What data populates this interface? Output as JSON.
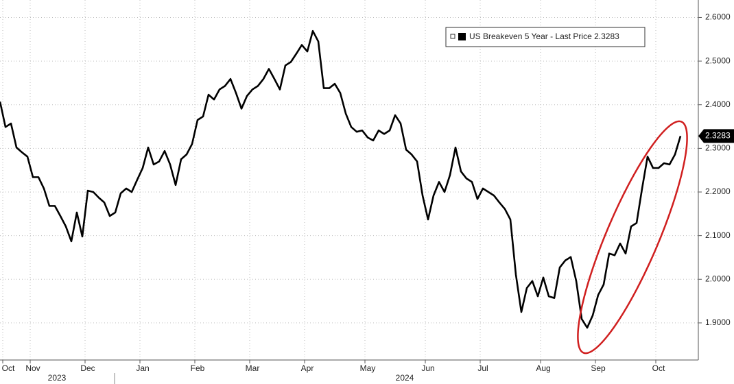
{
  "chart_data": {
    "type": "line",
    "categories": [
      null,
      "Oct",
      null,
      null,
      null,
      null,
      "Nov",
      null,
      null,
      null,
      null,
      null,
      null,
      null,
      null,
      null,
      "Dec",
      null,
      null,
      null,
      null,
      null,
      null,
      null,
      null,
      null,
      "Jan",
      null,
      null,
      null,
      null,
      null,
      null,
      null,
      null,
      null,
      "Feb",
      null,
      null,
      null,
      null,
      null,
      null,
      null,
      null,
      null,
      "Mar",
      null,
      null,
      null,
      null,
      null,
      null,
      null,
      null,
      null,
      "Apr",
      null,
      null,
      null,
      null,
      null,
      null,
      null,
      null,
      null,
      null,
      "May",
      null,
      null,
      null,
      null,
      null,
      null,
      null,
      null,
      null,
      null,
      "Jun",
      null,
      null,
      null,
      null,
      null,
      null,
      null,
      null,
      null,
      "Jul",
      null,
      null,
      null,
      null,
      null,
      null,
      null,
      null,
      null,
      null,
      "Aug",
      null,
      null,
      null,
      null,
      null,
      null,
      null,
      null,
      null,
      "Sep",
      null,
      null,
      null,
      null,
      null,
      null,
      null,
      null,
      null,
      null,
      "Oct",
      null,
      null,
      null,
      null
    ],
    "years": [
      "2023",
      "2024"
    ],
    "series": [
      {
        "name": "US Breakeven 5 Year - Last Price 2.3283",
        "color": "#000000",
        "values": [
          2.407,
          2.349,
          2.357,
          2.302,
          2.291,
          2.281,
          2.234,
          2.234,
          2.208,
          2.168,
          2.168,
          2.145,
          2.121,
          2.087,
          2.153,
          2.098,
          2.203,
          2.2,
          2.187,
          2.176,
          2.145,
          2.153,
          2.197,
          2.208,
          2.2,
          2.228,
          2.255,
          2.302,
          2.263,
          2.27,
          2.294,
          2.263,
          2.216,
          2.275,
          2.286,
          2.31,
          2.365,
          2.373,
          2.423,
          2.412,
          2.435,
          2.443,
          2.459,
          2.427,
          2.391,
          2.42,
          2.435,
          2.443,
          2.459,
          2.482,
          2.459,
          2.435,
          2.49,
          2.498,
          2.517,
          2.537,
          2.522,
          2.569,
          2.545,
          2.438,
          2.438,
          2.448,
          2.427,
          2.38,
          2.349,
          2.338,
          2.341,
          2.325,
          2.318,
          2.341,
          2.333,
          2.341,
          2.376,
          2.357,
          2.297,
          2.286,
          2.27,
          2.192,
          2.137,
          2.192,
          2.223,
          2.2,
          2.239,
          2.302,
          2.247,
          2.231,
          2.223,
          2.184,
          2.208,
          2.2,
          2.192,
          2.176,
          2.161,
          2.137,
          2.011,
          1.925,
          1.98,
          1.996,
          1.961,
          2.004,
          1.961,
          1.957,
          2.027,
          2.043,
          2.051,
          1.996,
          1.909,
          1.889,
          1.917,
          1.964,
          1.988,
          2.059,
          2.055,
          2.082,
          2.059,
          2.121,
          2.129,
          2.208,
          2.281,
          2.255,
          2.255,
          2.266,
          2.263,
          2.286,
          2.3283
        ]
      }
    ],
    "ylim": [
      1.815,
      2.64
    ],
    "yticks": [
      {
        "value": 1.9,
        "label": "1.9000"
      },
      {
        "value": 2.0,
        "label": "2.0000"
      },
      {
        "value": 2.1,
        "label": "2.1000"
      },
      {
        "value": 2.2,
        "label": "2.2000"
      },
      {
        "value": 2.3,
        "label": "2.3000"
      },
      {
        "value": 2.4,
        "label": "2.4000"
      },
      {
        "value": 2.5,
        "label": "2.5000"
      },
      {
        "value": 2.6,
        "label": "2.6000"
      }
    ],
    "grid": true,
    "legend": "upper right"
  }
}
